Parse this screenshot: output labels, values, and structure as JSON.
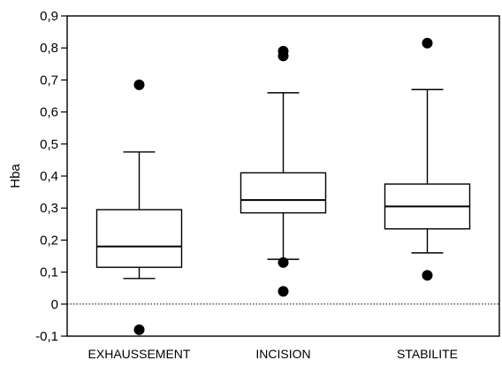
{
  "chart_data": {
    "type": "box",
    "title": "",
    "xlabel": "",
    "ylabel": "Hba",
    "ylim": [
      -0.1,
      0.9
    ],
    "yticks": [
      "-0,1",
      "0",
      "0,1",
      "0,2",
      "0,3",
      "0,4",
      "0,5",
      "0,6",
      "0,7",
      "0,8",
      "0,9"
    ],
    "categories": [
      "EXHAUSSEMENT",
      "INCISION",
      "STABILITE"
    ],
    "reference_line": {
      "y": 0,
      "style": "dotted"
    },
    "grid": false,
    "boxes": [
      {
        "category": "EXHAUSSEMENT",
        "whisker_low": 0.08,
        "q1": 0.115,
        "median": 0.18,
        "q3": 0.295,
        "whisker_high": 0.475,
        "outliers": [
          -0.08,
          0.685
        ]
      },
      {
        "category": "INCISION",
        "whisker_low": 0.14,
        "q1": 0.285,
        "median": 0.325,
        "q3": 0.41,
        "whisker_high": 0.66,
        "outliers": [
          0.04,
          0.13,
          0.775,
          0.79
        ]
      },
      {
        "category": "STABILITE",
        "whisker_low": 0.16,
        "q1": 0.235,
        "median": 0.305,
        "q3": 0.375,
        "whisker_high": 0.67,
        "outliers": [
          0.09,
          0.815
        ]
      }
    ],
    "colors": {
      "stroke": "#000000",
      "box_fill": "#ffffff",
      "outlier": "#000000"
    }
  }
}
